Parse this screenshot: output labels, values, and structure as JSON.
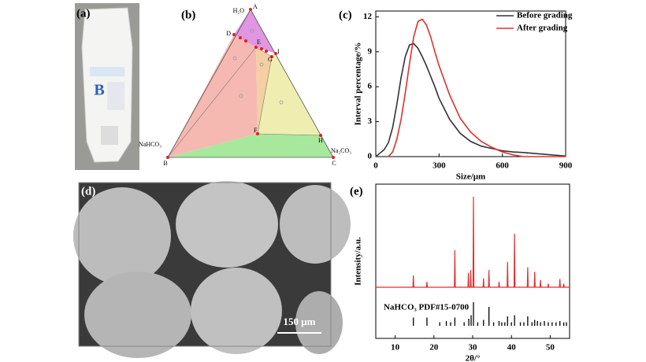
{
  "panel_labels": [
    "(a)",
    "(b)",
    "(c)",
    "(d)",
    "(e)"
  ],
  "photo_text": "B",
  "ternary": {
    "vertex_labels": [
      "H₂O",
      "NaHCO₃",
      "Na₂CO₃"
    ],
    "point_labels": [
      "A",
      "B",
      "C",
      "D",
      "E",
      "G",
      "I",
      "F",
      "H"
    ]
  },
  "scale_bar": "150 μm",
  "chart_data": [
    {
      "type": "line",
      "xlabel": "Size/μm",
      "ylabel": "Interval percentage/%",
      "xlim": [
        0,
        900
      ],
      "xticks": [
        0,
        300,
        600,
        900
      ],
      "ylim": [
        0,
        12.5
      ],
      "yticks": [
        0,
        3,
        6,
        9,
        12
      ],
      "legend": "upper right",
      "x": [
        0,
        20,
        40,
        60,
        80,
        100,
        120,
        140,
        160,
        180,
        200,
        220,
        240,
        260,
        280,
        300,
        350,
        400,
        450,
        500,
        550,
        600,
        650,
        700,
        800,
        900
      ],
      "series": [
        {
          "name": "Before grading",
          "color": "#333333",
          "values": [
            0,
            0.3,
            0.6,
            1.2,
            2.5,
            4.5,
            6.8,
            8.6,
            9.6,
            9.7,
            9.3,
            8.6,
            7.8,
            6.9,
            6,
            5,
            3.2,
            2,
            1.3,
            0.9,
            0.7,
            0.5,
            0.4,
            0.35,
            0.2,
            0.05
          ]
        },
        {
          "name": "After grading",
          "color": "#e03030",
          "values": [
            null,
            null,
            null,
            0,
            0.4,
            1.5,
            3.2,
            5.5,
            8,
            10.3,
            11.6,
            11.8,
            11.3,
            10.3,
            9,
            7.8,
            5.3,
            3.3,
            2.1,
            1.3,
            0.8,
            0.4,
            0.15,
            0,
            0,
            0
          ]
        }
      ]
    },
    {
      "type": "xrd",
      "xlabel": "2θ/°",
      "ylabel": "Intensity/a.u.",
      "xlim": [
        5,
        55
      ],
      "xticks": [
        10,
        20,
        30,
        40,
        50
      ],
      "ylim": [
        0,
        100
      ],
      "color": "#e03030",
      "x": [
        14.7,
        18.2,
        25.4,
        28.9,
        29.5,
        30.2,
        32.8,
        34.2,
        36.8,
        39.0,
        40.8,
        44.2,
        46.0,
        47.5,
        49.5,
        52.5,
        53.5
      ],
      "values": [
        13,
        6,
        41,
        16,
        19,
        100,
        10,
        19,
        6,
        28,
        59,
        22,
        17,
        8,
        4,
        9,
        4
      ],
      "reference": {
        "label": "NaHCO₃ PDF#15-0700",
        "color": "#000000",
        "x": [
          14.7,
          18.2,
          21.5,
          23.2,
          24.3,
          25.4,
          27.8,
          29.0,
          29.6,
          30.2,
          31.3,
          32.8,
          34.2,
          35.4,
          36.8,
          37.5,
          38.3,
          39.0,
          40.0,
          40.8,
          42.3,
          43.2,
          44.2,
          45.3,
          46.0,
          46.7,
          47.5,
          48.5,
          49.5,
          50.5,
          51.5,
          52.5,
          53.5,
          54.2
        ],
        "values": [
          35,
          35,
          15,
          20,
          15,
          35,
          15,
          30,
          45,
          100,
          15,
          25,
          80,
          15,
          20,
          15,
          15,
          40,
          15,
          45,
          15,
          15,
          40,
          15,
          25,
          20,
          15,
          20,
          15,
          15,
          15,
          20,
          15,
          15
        ]
      }
    }
  ]
}
